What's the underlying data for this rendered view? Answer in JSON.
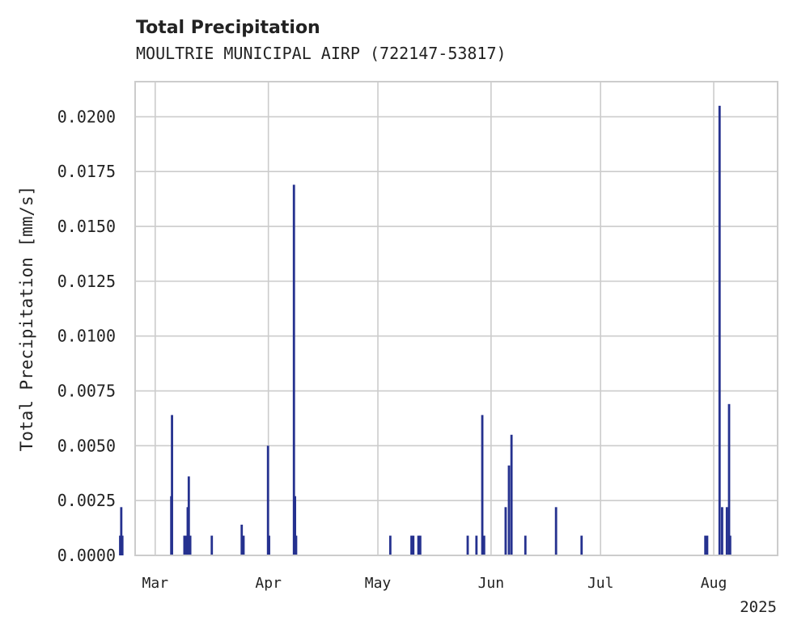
{
  "chart_data": {
    "type": "bar",
    "title": "Total Precipitation",
    "subtitle": "MOULTRIE MUNICIPAL AIRP (722147-53817)",
    "ylabel": "Total Precipitation [mm/s]",
    "xlabel": "",
    "year_label": "2025",
    "ylim": [
      0,
      0.0216
    ],
    "xlim_day": [
      -5.5,
      170.5
    ],
    "yticks": [
      {
        "value": 0.0,
        "label": "0.0000"
      },
      {
        "value": 0.0025,
        "label": "0.0025"
      },
      {
        "value": 0.005,
        "label": "0.0050"
      },
      {
        "value": 0.0075,
        "label": "0.0075"
      },
      {
        "value": 0.01,
        "label": "0.0100"
      },
      {
        "value": 0.0125,
        "label": "0.0125"
      },
      {
        "value": 0.015,
        "label": "0.0150"
      },
      {
        "value": 0.0175,
        "label": "0.0175"
      },
      {
        "value": 0.02,
        "label": "0.0200"
      }
    ],
    "xticks": [
      {
        "day": 0,
        "label": "Mar"
      },
      {
        "day": 31,
        "label": "Apr"
      },
      {
        "day": 61,
        "label": "May"
      },
      {
        "day": 92,
        "label": "Jun"
      },
      {
        "day": 122,
        "label": "Jul"
      },
      {
        "day": 153,
        "label": "Aug"
      }
    ],
    "grid": true,
    "series": [
      {
        "name": "Total Precipitation",
        "color": "#25318f",
        "points": [
          {
            "day": -9.6,
            "value": 0.0009
          },
          {
            "day": -9.3,
            "value": 0.0022
          },
          {
            "day": -9.0,
            "value": 0.0009
          },
          {
            "day": 4.4,
            "value": 0.0027
          },
          {
            "day": 4.6,
            "value": 0.0064
          },
          {
            "day": 8.0,
            "value": 0.0009
          },
          {
            "day": 8.5,
            "value": 0.0009
          },
          {
            "day": 8.9,
            "value": 0.0022
          },
          {
            "day": 9.2,
            "value": 0.0036
          },
          {
            "day": 9.6,
            "value": 0.0009
          },
          {
            "day": 15.5,
            "value": 0.0009
          },
          {
            "day": 23.7,
            "value": 0.0014
          },
          {
            "day": 24.2,
            "value": 0.0009
          },
          {
            "day": 30.9,
            "value": 0.005
          },
          {
            "day": 31.2,
            "value": 0.0009
          },
          {
            "day": 38.0,
            "value": 0.0169
          },
          {
            "day": 38.3,
            "value": 0.0027
          },
          {
            "day": 38.6,
            "value": 0.0009
          },
          {
            "day": 64.4,
            "value": 0.0009
          },
          {
            "day": 70.2,
            "value": 0.0009
          },
          {
            "day": 70.7,
            "value": 0.0009
          },
          {
            "day": 72.1,
            "value": 0.0009
          },
          {
            "day": 72.6,
            "value": 0.0009
          },
          {
            "day": 85.6,
            "value": 0.0009
          },
          {
            "day": 88.0,
            "value": 0.0009
          },
          {
            "day": 89.6,
            "value": 0.0064
          },
          {
            "day": 90.1,
            "value": 0.0009
          },
          {
            "day": 96.0,
            "value": 0.0022
          },
          {
            "day": 96.9,
            "value": 0.0041
          },
          {
            "day": 97.6,
            "value": 0.0055
          },
          {
            "day": 101.4,
            "value": 0.0009
          },
          {
            "day": 109.8,
            "value": 0.0022
          },
          {
            "day": 116.8,
            "value": 0.0009
          },
          {
            "day": 150.7,
            "value": 0.0009
          },
          {
            "day": 151.2,
            "value": 0.0009
          },
          {
            "day": 154.6,
            "value": 0.0205
          },
          {
            "day": 155.3,
            "value": 0.0022
          },
          {
            "day": 156.6,
            "value": 0.0022
          },
          {
            "day": 157.2,
            "value": 0.0069
          },
          {
            "day": 157.5,
            "value": 0.0009
          }
        ]
      }
    ]
  }
}
